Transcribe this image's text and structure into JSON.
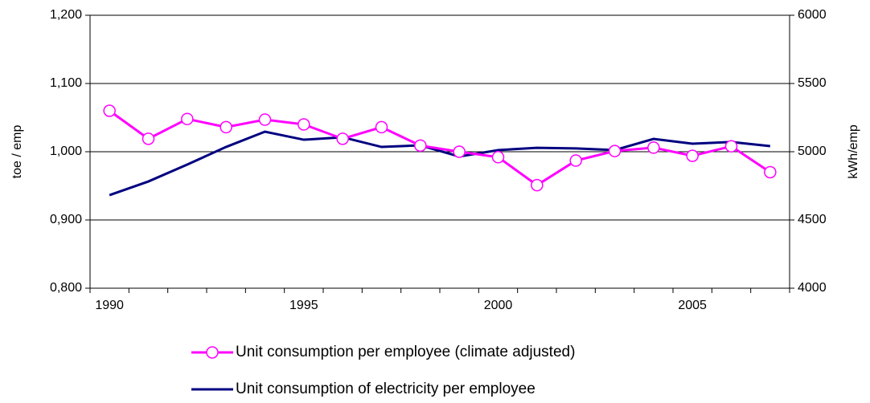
{
  "chart_data": {
    "type": "line",
    "y_label": "toe / emp",
    "y2_label": "kWh/emp",
    "categories": [
      "1990",
      null,
      null,
      null,
      null,
      "1995",
      null,
      null,
      null,
      null,
      "2000",
      null,
      null,
      null,
      null,
      "2005",
      null,
      null
    ],
    "ylim": [
      0.8,
      1.2
    ],
    "yticks": [
      {
        "value": 0.8,
        "label": "0,800"
      },
      {
        "value": 0.9,
        "label": "0,900"
      },
      {
        "value": 1.0,
        "label": "1,000"
      },
      {
        "value": 1.1,
        "label": "1,100"
      },
      {
        "value": 1.2,
        "label": "1,200"
      }
    ],
    "y2lim": [
      4000,
      6000
    ],
    "y2ticks": [
      4000,
      4500,
      5000,
      5500,
      6000
    ],
    "grid": true,
    "series": [
      {
        "name": "Unit consumption per employee (climate adjusted)",
        "color": "#ff00ff",
        "marker": "circle",
        "values": [
          1.06,
          1.019,
          1.048,
          1.036,
          1.047,
          1.04,
          1.019,
          1.036,
          1.009,
          1.0,
          0.992,
          0.951,
          0.987,
          1.001,
          1.006,
          0.994,
          1.008,
          0.97
        ]
      },
      {
        "name": "Unit consumption of electricity per employee",
        "color": "#000080",
        "axis": "y2",
        "values": [
          4682,
          4782,
          4906,
          5035,
          5147,
          5088,
          5106,
          5035,
          5047,
          4965,
          5012,
          5029,
          5024,
          5012,
          5094,
          5059,
          5071,
          5041
        ]
      }
    ]
  }
}
